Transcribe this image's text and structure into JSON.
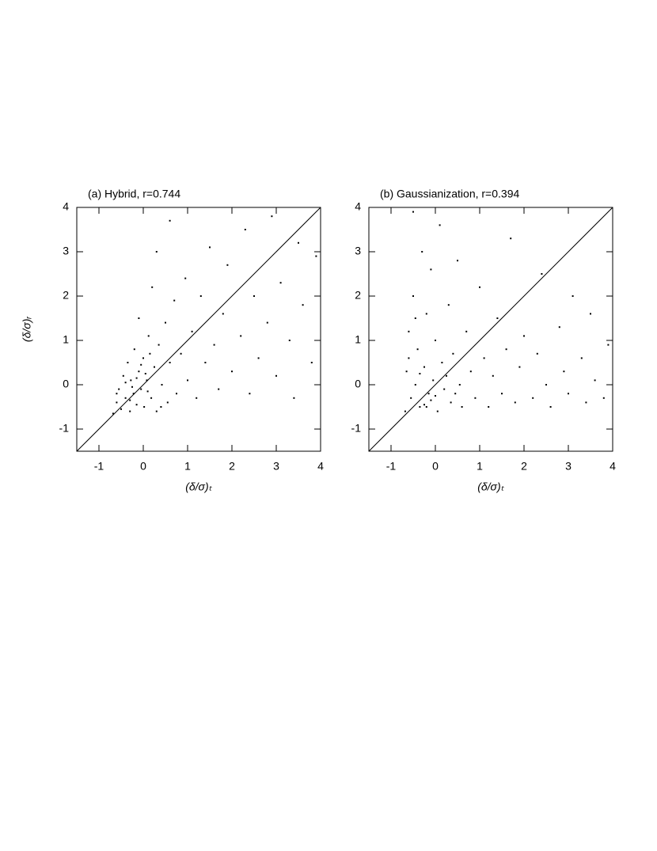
{
  "chart_data": [
    {
      "type": "scatter",
      "title": "(a) Hybrid, r=0.744",
      "xlabel": "(δ/σ)ₜ",
      "ylabel": "(δ/σ)ᵣ",
      "x": [
        -0.68,
        -0.6,
        -0.55,
        -0.5,
        -0.45,
        -0.4,
        -0.35,
        -0.3,
        -0.28,
        -0.22,
        -0.2,
        -0.15,
        -0.1,
        -0.05,
        0,
        0.02,
        0.08,
        0.12,
        0.18,
        0.25,
        0.3,
        0.35,
        0.42,
        0.5,
        0.55,
        0.6,
        0.7,
        0.75,
        0.85,
        0.95,
        1.0,
        1.1,
        1.2,
        1.3,
        1.4,
        1.5,
        1.6,
        1.7,
        1.8,
        1.9,
        2.0,
        2.2,
        2.3,
        2.4,
        2.5,
        2.6,
        2.8,
        2.9,
        3.0,
        3.1,
        3.3,
        3.4,
        3.5,
        3.6,
        3.8,
        3.9,
        0.3,
        0.2,
        -0.1,
        0.6,
        -0.3,
        -0.25,
        -0.15,
        -0.4,
        0.05,
        0.1,
        -0.05,
        -0.6,
        0.4,
        0.15
      ],
      "y": [
        -0.65,
        -0.4,
        -0.1,
        -0.55,
        0.2,
        -0.3,
        0.5,
        -0.6,
        0.1,
        -0.2,
        0.8,
        -0.45,
        0.3,
        -0.1,
        0.6,
        -0.5,
        0.1,
        1.1,
        -0.3,
        0.4,
        -0.6,
        0.9,
        0.0,
        1.4,
        -0.4,
        0.5,
        1.9,
        -0.2,
        0.7,
        2.4,
        0.1,
        1.2,
        -0.3,
        2.0,
        0.5,
        3.1,
        0.9,
        -0.1,
        1.6,
        2.7,
        0.3,
        1.1,
        3.5,
        -0.2,
        2.0,
        0.6,
        1.4,
        3.8,
        0.2,
        2.3,
        1.0,
        -0.3,
        3.2,
        1.8,
        0.5,
        2.9,
        3.0,
        2.2,
        1.5,
        3.7,
        -0.35,
        -0.05,
        0.15,
        0.05,
        0.25,
        -0.15,
        0.45,
        -0.2,
        -0.5,
        0.7
      ],
      "color": "#000000",
      "xlim": [
        -1.5,
        4
      ],
      "ylim": [
        -1.5,
        4
      ],
      "xticks": [
        -1,
        0,
        1,
        2,
        3,
        4
      ],
      "yticks": [
        -1,
        0,
        1,
        2,
        3,
        4
      ],
      "diagonal": true
    },
    {
      "type": "scatter",
      "title": "(b) Gaussianization, r=0.394",
      "xlabel": "(δ/σ)ₜ",
      "x": [
        -0.68,
        -0.65,
        -0.6,
        -0.55,
        -0.5,
        -0.45,
        -0.4,
        -0.35,
        -0.3,
        -0.25,
        -0.2,
        -0.15,
        -0.1,
        -0.05,
        0,
        0.05,
        0.1,
        0.15,
        0.2,
        0.3,
        0.35,
        0.4,
        0.5,
        0.55,
        0.6,
        0.7,
        0.8,
        0.9,
        1.0,
        1.1,
        1.2,
        1.3,
        1.4,
        1.5,
        1.6,
        1.7,
        1.8,
        1.9,
        2.0,
        2.2,
        2.3,
        2.4,
        2.5,
        2.6,
        2.8,
        2.9,
        3.0,
        3.1,
        3.3,
        3.4,
        3.5,
        3.6,
        3.8,
        3.9,
        -0.5,
        -0.2,
        -0.6,
        -0.35,
        -0.1,
        0.25,
        0.45,
        -0.45,
        0.0,
        -0.25
      ],
      "y": [
        -0.6,
        0.3,
        1.2,
        -0.3,
        2.0,
        0.0,
        0.8,
        -0.5,
        3.0,
        0.4,
        1.6,
        -0.2,
        2.6,
        0.1,
        1.0,
        -0.6,
        3.6,
        0.5,
        -0.1,
        1.8,
        -0.4,
        0.7,
        2.8,
        0.0,
        -0.5,
        1.2,
        0.3,
        -0.3,
        2.2,
        0.6,
        -0.5,
        0.2,
        1.5,
        -0.2,
        0.8,
        3.3,
        -0.4,
        0.4,
        1.1,
        -0.3,
        0.7,
        2.5,
        0.0,
        -0.5,
        1.3,
        0.3,
        -0.2,
        2.0,
        0.6,
        -0.4,
        1.6,
        0.1,
        -0.3,
        0.9,
        3.9,
        -0.5,
        0.6,
        0.25,
        -0.35,
        0.2,
        -0.2,
        1.5,
        -0.25,
        -0.45
      ],
      "color": "#000000",
      "xlim": [
        -1.5,
        4
      ],
      "ylim": [
        -1.5,
        4
      ],
      "xticks": [
        -1,
        0,
        1,
        2,
        3,
        4
      ],
      "yticks": [
        -1,
        0,
        1,
        2,
        3,
        4
      ],
      "diagonal": true
    }
  ]
}
